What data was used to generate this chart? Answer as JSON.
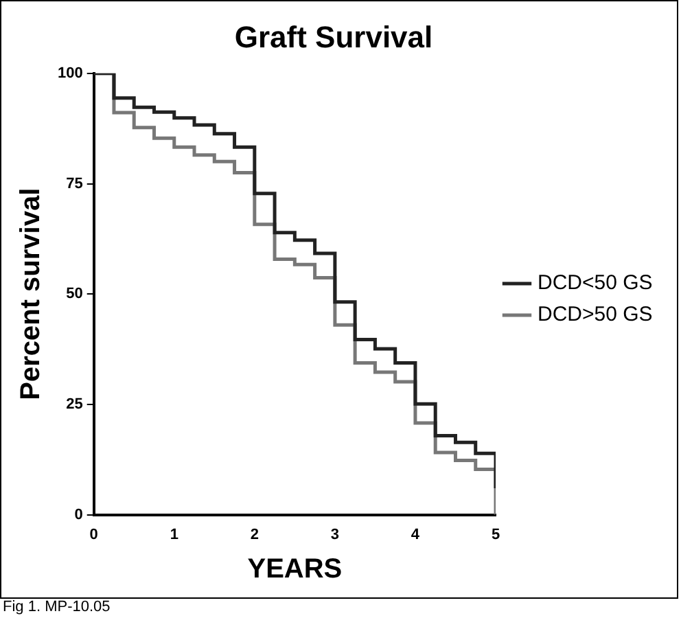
{
  "chart_data": {
    "type": "step",
    "title": "Graft Survival",
    "xlabel": "YEARS",
    "ylabel": "Percent survival",
    "x": [
      0,
      0.25,
      0.5,
      0.75,
      1,
      1.25,
      1.5,
      1.75,
      2,
      2.25,
      2.5,
      2.75,
      3,
      3.25,
      3.5,
      3.75,
      4,
      4.25,
      4.5,
      4.75,
      5
    ],
    "series": [
      {
        "name": "DCD<50 GS",
        "color": "#222222",
        "values": [
          100,
          94.4,
          92.3,
          91.2,
          89.9,
          88.3,
          86.3,
          83.3,
          72.8,
          63.9,
          62.2,
          59.2,
          48.2,
          39.7,
          37.6,
          34.4,
          25.1,
          17.9,
          16.4,
          13.9,
          6
        ]
      },
      {
        "name": "DCD>50 GS",
        "color": "#777777",
        "values": [
          100,
          91.1,
          87.7,
          85.3,
          83.3,
          81.5,
          80,
          77.5,
          65.8,
          57.9,
          56.7,
          53.7,
          43,
          34.4,
          32.3,
          30.1,
          20.8,
          14.1,
          12.3,
          10.3,
          0
        ]
      }
    ],
    "xlim": [
      0,
      5
    ],
    "xticks": [
      0,
      1,
      2,
      3,
      4,
      5
    ],
    "ylim": [
      0,
      100
    ],
    "yticks": [
      0,
      25,
      50,
      75,
      100
    ],
    "grid": false,
    "legend": "right",
    "annotations": [
      "Fig 1. MP-10.05"
    ]
  }
}
